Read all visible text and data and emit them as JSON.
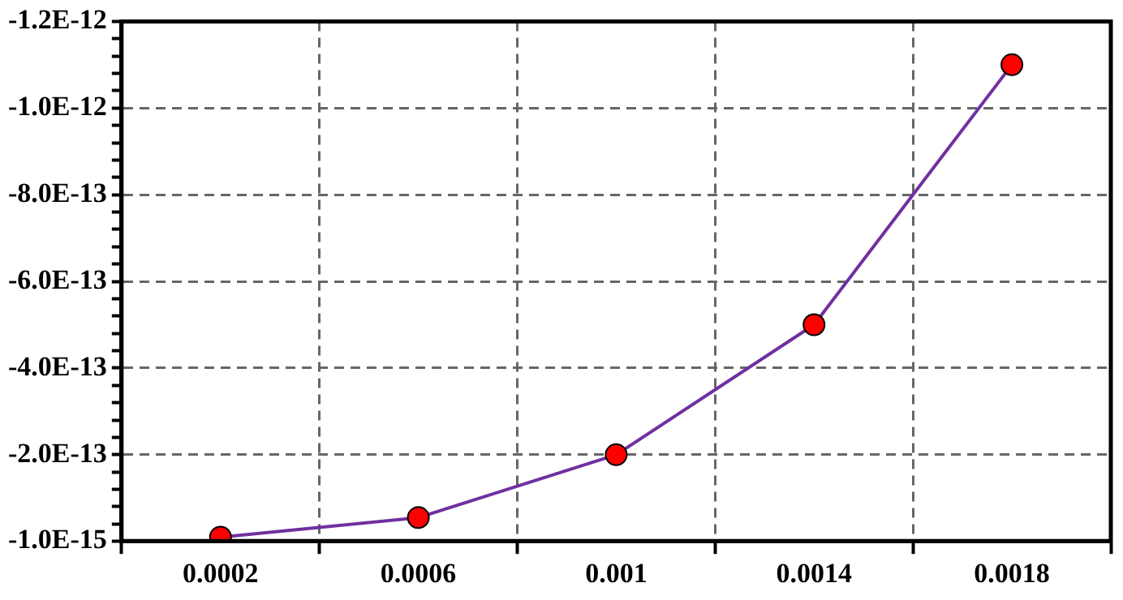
{
  "chart_data": {
    "type": "line",
    "categories": [
      "0.0002",
      "0.0006",
      "0.001",
      "0.0014",
      "0.0018"
    ],
    "series": [
      {
        "color": "#7030a0",
        "colors": [
          "#ff0000",
          "#ff0000",
          "#ff0000",
          "#ff0000",
          "#ff0000"
        ],
        "values": [
          -1e-14,
          -5.5e-14,
          -2e-13,
          -5e-13,
          -1.1e-12
        ]
      }
    ],
    "ylim": [
      -1e-15,
      -1.2e-12
    ],
    "yticks": [
      {
        "value": -1e-15,
        "label": "-1.0E-15"
      },
      {
        "value": -4e-14,
        "label": null
      },
      {
        "value": -8e-14,
        "label": null
      },
      {
        "value": -1.2e-13,
        "label": null
      },
      {
        "value": -1.6e-13,
        "label": null
      },
      {
        "value": -2e-13,
        "label": "-2.0E-13"
      },
      {
        "value": -2.4e-13,
        "label": null
      },
      {
        "value": -2.8e-13,
        "label": null
      },
      {
        "value": -3.2e-13,
        "label": null
      },
      {
        "value": -3.6e-13,
        "label": null
      },
      {
        "value": -4e-13,
        "label": "-4.0E-13"
      },
      {
        "value": -4.4e-13,
        "label": null
      },
      {
        "value": -4.8e-13,
        "label": null
      },
      {
        "value": -5.2e-13,
        "label": null
      },
      {
        "value": -5.6e-13,
        "label": null
      },
      {
        "value": -6e-13,
        "label": "-6.0E-13"
      },
      {
        "value": -6.4e-13,
        "label": null
      },
      {
        "value": -6.8e-13,
        "label": null
      },
      {
        "value": -7.2e-13,
        "label": null
      },
      {
        "value": -7.6e-13,
        "label": null
      },
      {
        "value": -8e-13,
        "label": "-8.0E-13"
      },
      {
        "value": -8.4e-13,
        "label": null
      },
      {
        "value": -8.8e-13,
        "label": null
      },
      {
        "value": -9.2e-13,
        "label": null
      },
      {
        "value": -9.6e-13,
        "label": null
      },
      {
        "value": -1e-12,
        "label": "-1.0E-12"
      },
      {
        "value": -1.04e-12,
        "label": null
      },
      {
        "value": -1.08e-12,
        "label": null
      },
      {
        "value": -1.12e-12,
        "label": null
      },
      {
        "value": -1.16e-12,
        "label": null
      },
      {
        "value": -1.2e-12,
        "label": "-1.2E-12"
      }
    ],
    "grid": true,
    "legend": false,
    "marker": "circle",
    "line_style": "solid"
  }
}
